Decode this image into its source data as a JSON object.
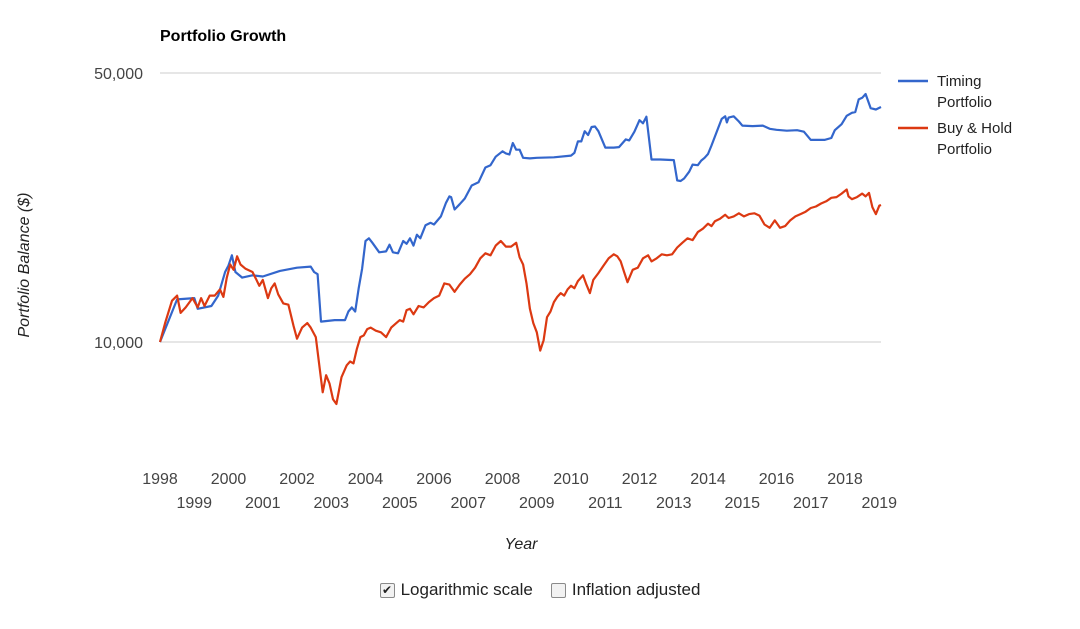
{
  "chart_data": {
    "type": "line",
    "title": "Portfolio Growth",
    "xlabel": "Year",
    "ylabel": "Portfolio Balance ($)",
    "y_scale": "log",
    "yticks": [
      10000,
      50000
    ],
    "ytick_labels": [
      "10,000",
      "50,000"
    ],
    "ylim": [
      5000,
      50000
    ],
    "xlim": [
      1998.0,
      2019.05
    ],
    "xticks": [
      "1998",
      "1999",
      "2000",
      "2001",
      "2002",
      "2003",
      "2004",
      "2005",
      "2006",
      "2007",
      "2008",
      "2009",
      "2010",
      "2011",
      "2012",
      "2013",
      "2014",
      "2015",
      "2016",
      "2017",
      "2018",
      "2019"
    ],
    "grid": true,
    "legend_position": "right",
    "series": [
      {
        "name": "Timing Portfolio",
        "color": "#3366cc",
        "points": [
          [
            1998.0,
            10000
          ],
          [
            1998.5,
            12900
          ],
          [
            1999.0,
            13000
          ],
          [
            1999.1,
            12200
          ],
          [
            1999.5,
            12400
          ],
          [
            1999.7,
            13200
          ],
          [
            1999.9,
            15200
          ],
          [
            2000.0,
            15800
          ],
          [
            2000.1,
            16800
          ],
          [
            2000.2,
            15200
          ],
          [
            2000.4,
            14700
          ],
          [
            2000.7,
            14900
          ],
          [
            2001.0,
            14800
          ],
          [
            2001.5,
            15300
          ],
          [
            2002.0,
            15600
          ],
          [
            2002.4,
            15700
          ],
          [
            2002.5,
            15200
          ],
          [
            2002.6,
            15000
          ],
          [
            2002.7,
            11300
          ],
          [
            2003.1,
            11400
          ],
          [
            2003.4,
            11400
          ],
          [
            2003.5,
            12000
          ],
          [
            2003.6,
            12300
          ],
          [
            2003.7,
            12000
          ],
          [
            2003.8,
            13800
          ],
          [
            2003.9,
            15500
          ],
          [
            2004.0,
            18300
          ],
          [
            2004.1,
            18600
          ],
          [
            2004.2,
            18100
          ],
          [
            2004.4,
            17100
          ],
          [
            2004.6,
            17200
          ],
          [
            2004.7,
            17900
          ],
          [
            2004.8,
            17100
          ],
          [
            2004.95,
            17000
          ],
          [
            2005.1,
            18300
          ],
          [
            2005.2,
            18000
          ],
          [
            2005.3,
            18600
          ],
          [
            2005.4,
            17800
          ],
          [
            2005.5,
            19000
          ],
          [
            2005.6,
            18600
          ],
          [
            2005.75,
            20100
          ],
          [
            2005.9,
            20400
          ],
          [
            2006.0,
            20200
          ],
          [
            2006.2,
            21200
          ],
          [
            2006.35,
            23000
          ],
          [
            2006.45,
            23900
          ],
          [
            2006.5,
            23800
          ],
          [
            2006.6,
            22100
          ],
          [
            2006.75,
            22800
          ],
          [
            2006.9,
            23600
          ],
          [
            2007.1,
            25500
          ],
          [
            2007.3,
            26000
          ],
          [
            2007.5,
            28400
          ],
          [
            2007.65,
            28800
          ],
          [
            2007.8,
            30300
          ],
          [
            2008.0,
            31300
          ],
          [
            2008.1,
            30900
          ],
          [
            2008.2,
            30700
          ],
          [
            2008.3,
            32900
          ],
          [
            2008.4,
            31600
          ],
          [
            2008.5,
            31600
          ],
          [
            2008.6,
            30100
          ],
          [
            2008.8,
            30000
          ],
          [
            2009.0,
            30100
          ],
          [
            2009.5,
            30200
          ],
          [
            2010.0,
            30500
          ],
          [
            2010.1,
            31000
          ],
          [
            2010.2,
            33200
          ],
          [
            2010.3,
            33200
          ],
          [
            2010.4,
            35300
          ],
          [
            2010.5,
            34500
          ],
          [
            2010.6,
            36200
          ],
          [
            2010.7,
            36300
          ],
          [
            2010.8,
            35300
          ],
          [
            2011.0,
            32000
          ],
          [
            2011.25,
            32000
          ],
          [
            2011.4,
            32100
          ],
          [
            2011.6,
            33600
          ],
          [
            2011.7,
            33400
          ],
          [
            2011.85,
            35200
          ],
          [
            2012.0,
            37700
          ],
          [
            2012.1,
            37000
          ],
          [
            2012.2,
            38500
          ],
          [
            2012.35,
            29800
          ],
          [
            2012.6,
            29800
          ],
          [
            2013.0,
            29700
          ],
          [
            2013.1,
            26300
          ],
          [
            2013.2,
            26200
          ],
          [
            2013.3,
            26600
          ],
          [
            2013.45,
            27700
          ],
          [
            2013.55,
            28900
          ],
          [
            2013.7,
            28800
          ],
          [
            2013.8,
            29600
          ],
          [
            2013.9,
            30100
          ],
          [
            2014.0,
            30800
          ],
          [
            2014.1,
            32400
          ],
          [
            2014.25,
            35100
          ],
          [
            2014.4,
            38000
          ],
          [
            2014.5,
            38600
          ],
          [
            2014.55,
            37200
          ],
          [
            2014.6,
            38300
          ],
          [
            2014.75,
            38600
          ],
          [
            2014.9,
            37400
          ],
          [
            2015.0,
            36500
          ],
          [
            2015.3,
            36400
          ],
          [
            2015.6,
            36500
          ],
          [
            2015.8,
            35800
          ],
          [
            2016.0,
            35600
          ],
          [
            2016.3,
            35400
          ],
          [
            2016.6,
            35500
          ],
          [
            2016.8,
            35200
          ],
          [
            2017.0,
            33500
          ],
          [
            2017.4,
            33500
          ],
          [
            2017.6,
            33900
          ],
          [
            2017.7,
            35500
          ],
          [
            2017.9,
            36800
          ],
          [
            2018.05,
            38700
          ],
          [
            2018.2,
            39400
          ],
          [
            2018.3,
            39600
          ],
          [
            2018.4,
            42700
          ],
          [
            2018.5,
            43100
          ],
          [
            2018.6,
            44100
          ],
          [
            2018.75,
            40500
          ],
          [
            2018.9,
            40200
          ],
          [
            2019.05,
            40800
          ]
        ]
      },
      {
        "name": "Buy & Hold Portfolio",
        "color": "#dc3912",
        "points": [
          [
            1998.0,
            10000
          ],
          [
            1998.15,
            11200
          ],
          [
            1998.35,
            12800
          ],
          [
            1998.5,
            13200
          ],
          [
            1998.6,
            11900
          ],
          [
            1998.75,
            12300
          ],
          [
            1998.95,
            13000
          ],
          [
            1999.1,
            12300
          ],
          [
            1999.2,
            13000
          ],
          [
            1999.3,
            12400
          ],
          [
            1999.45,
            13200
          ],
          [
            1999.6,
            13200
          ],
          [
            1999.75,
            13700
          ],
          [
            1999.85,
            13100
          ],
          [
            1999.95,
            14700
          ],
          [
            2000.05,
            15900
          ],
          [
            2000.15,
            15400
          ],
          [
            2000.25,
            16700
          ],
          [
            2000.35,
            15900
          ],
          [
            2000.5,
            15500
          ],
          [
            2000.7,
            15200
          ],
          [
            2000.8,
            14600
          ],
          [
            2000.9,
            14000
          ],
          [
            2001.0,
            14500
          ],
          [
            2001.15,
            13000
          ],
          [
            2001.25,
            13800
          ],
          [
            2001.35,
            14200
          ],
          [
            2001.45,
            13300
          ],
          [
            2001.6,
            12600
          ],
          [
            2001.75,
            12500
          ],
          [
            2001.9,
            11000
          ],
          [
            2002.0,
            10200
          ],
          [
            2002.15,
            10900
          ],
          [
            2002.3,
            11200
          ],
          [
            2002.4,
            10900
          ],
          [
            2002.55,
            10300
          ],
          [
            2002.65,
            8700
          ],
          [
            2002.75,
            7400
          ],
          [
            2002.85,
            8200
          ],
          [
            2002.95,
            7800
          ],
          [
            2003.05,
            7100
          ],
          [
            2003.15,
            6900
          ],
          [
            2003.3,
            8100
          ],
          [
            2003.45,
            8700
          ],
          [
            2003.55,
            8900
          ],
          [
            2003.65,
            8800
          ],
          [
            2003.75,
            9600
          ],
          [
            2003.85,
            10300
          ],
          [
            2003.95,
            10400
          ],
          [
            2004.05,
            10800
          ],
          [
            2004.15,
            10900
          ],
          [
            2004.3,
            10700
          ],
          [
            2004.45,
            10600
          ],
          [
            2004.6,
            10300
          ],
          [
            2004.75,
            10900
          ],
          [
            2004.9,
            11200
          ],
          [
            2005.0,
            11400
          ],
          [
            2005.1,
            11300
          ],
          [
            2005.2,
            12100
          ],
          [
            2005.3,
            12200
          ],
          [
            2005.4,
            11800
          ],
          [
            2005.55,
            12400
          ],
          [
            2005.7,
            12300
          ],
          [
            2005.85,
            12700
          ],
          [
            2006.0,
            13000
          ],
          [
            2006.15,
            13200
          ],
          [
            2006.3,
            14200
          ],
          [
            2006.45,
            14100
          ],
          [
            2006.6,
            13500
          ],
          [
            2006.75,
            14100
          ],
          [
            2006.9,
            14600
          ],
          [
            2007.05,
            15000
          ],
          [
            2007.2,
            15600
          ],
          [
            2007.35,
            16500
          ],
          [
            2007.5,
            17000
          ],
          [
            2007.65,
            16800
          ],
          [
            2007.8,
            17800
          ],
          [
            2007.95,
            18300
          ],
          [
            2008.1,
            17700
          ],
          [
            2008.25,
            17700
          ],
          [
            2008.4,
            18100
          ],
          [
            2008.5,
            16600
          ],
          [
            2008.6,
            15900
          ],
          [
            2008.7,
            14200
          ],
          [
            2008.8,
            12200
          ],
          [
            2008.9,
            11200
          ],
          [
            2009.0,
            10600
          ],
          [
            2009.1,
            9500
          ],
          [
            2009.2,
            10100
          ],
          [
            2009.3,
            11600
          ],
          [
            2009.4,
            12000
          ],
          [
            2009.5,
            12700
          ],
          [
            2009.6,
            13100
          ],
          [
            2009.7,
            13400
          ],
          [
            2009.8,
            13200
          ],
          [
            2009.9,
            13700
          ],
          [
            2010.0,
            14000
          ],
          [
            2010.1,
            13800
          ],
          [
            2010.2,
            14400
          ],
          [
            2010.35,
            14900
          ],
          [
            2010.45,
            14100
          ],
          [
            2010.55,
            13400
          ],
          [
            2010.65,
            14500
          ],
          [
            2010.8,
            15100
          ],
          [
            2010.95,
            15800
          ],
          [
            2011.1,
            16500
          ],
          [
            2011.25,
            16900
          ],
          [
            2011.35,
            16700
          ],
          [
            2011.45,
            16200
          ],
          [
            2011.55,
            15200
          ],
          [
            2011.65,
            14300
          ],
          [
            2011.8,
            15400
          ],
          [
            2011.95,
            15600
          ],
          [
            2012.1,
            16500
          ],
          [
            2012.25,
            16800
          ],
          [
            2012.35,
            16200
          ],
          [
            2012.5,
            16500
          ],
          [
            2012.65,
            16900
          ],
          [
            2012.8,
            16800
          ],
          [
            2012.95,
            16900
          ],
          [
            2013.1,
            17600
          ],
          [
            2013.25,
            18100
          ],
          [
            2013.4,
            18600
          ],
          [
            2013.55,
            18400
          ],
          [
            2013.7,
            19300
          ],
          [
            2013.85,
            19700
          ],
          [
            2014.0,
            20300
          ],
          [
            2014.1,
            20000
          ],
          [
            2014.2,
            20600
          ],
          [
            2014.35,
            20900
          ],
          [
            2014.5,
            21400
          ],
          [
            2014.6,
            21000
          ],
          [
            2014.75,
            21200
          ],
          [
            2014.9,
            21600
          ],
          [
            2015.05,
            21200
          ],
          [
            2015.2,
            21500
          ],
          [
            2015.35,
            21600
          ],
          [
            2015.5,
            21300
          ],
          [
            2015.65,
            20200
          ],
          [
            2015.8,
            19800
          ],
          [
            2015.95,
            20700
          ],
          [
            2016.1,
            19800
          ],
          [
            2016.25,
            20000
          ],
          [
            2016.4,
            20700
          ],
          [
            2016.55,
            21200
          ],
          [
            2016.7,
            21500
          ],
          [
            2016.85,
            21800
          ],
          [
            2017.0,
            22300
          ],
          [
            2017.15,
            22500
          ],
          [
            2017.3,
            22900
          ],
          [
            2017.45,
            23200
          ],
          [
            2017.6,
            23700
          ],
          [
            2017.75,
            23800
          ],
          [
            2017.9,
            24300
          ],
          [
            2018.05,
            24900
          ],
          [
            2018.1,
            23900
          ],
          [
            2018.2,
            23500
          ],
          [
            2018.35,
            23800
          ],
          [
            2018.5,
            24300
          ],
          [
            2018.6,
            23900
          ],
          [
            2018.7,
            24400
          ],
          [
            2018.8,
            22400
          ],
          [
            2018.9,
            21500
          ],
          [
            2019.0,
            22600
          ],
          [
            2019.05,
            22700
          ]
        ]
      }
    ]
  },
  "controls": {
    "log_scale": {
      "label": "Logarithmic scale",
      "checked": true
    },
    "inflation": {
      "label": "Inflation adjusted",
      "checked": false
    }
  }
}
